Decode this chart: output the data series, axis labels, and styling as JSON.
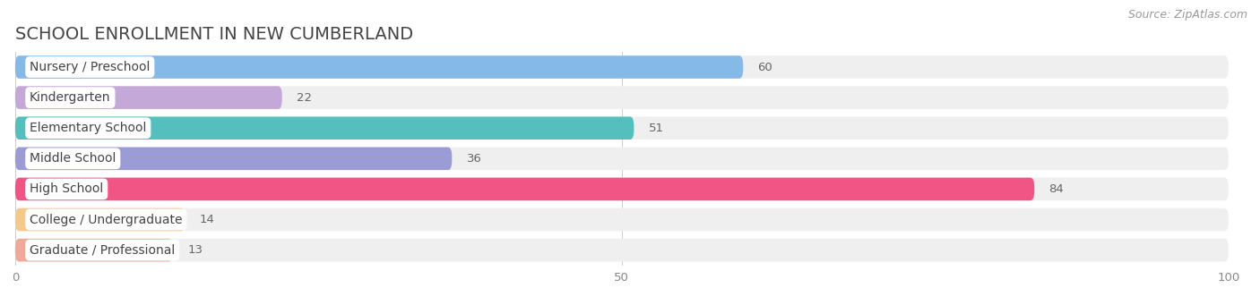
{
  "title": "SCHOOL ENROLLMENT IN NEW CUMBERLAND",
  "source": "Source: ZipAtlas.com",
  "categories": [
    "Nursery / Preschool",
    "Kindergarten",
    "Elementary School",
    "Middle School",
    "High School",
    "College / Undergraduate",
    "Graduate / Professional"
  ],
  "values": [
    60,
    22,
    51,
    36,
    84,
    14,
    13
  ],
  "bar_colors": [
    "#85BAE8",
    "#C4A8D8",
    "#55BFBE",
    "#9B9BD5",
    "#F05585",
    "#F5C98A",
    "#F0A898"
  ],
  "bar_bg_color": "#EFEFEF",
  "xlim": [
    0,
    100
  ],
  "xticks": [
    0,
    50,
    100
  ],
  "title_fontsize": 14,
  "label_fontsize": 10,
  "value_fontsize": 9.5,
  "source_fontsize": 9,
  "background_color": "#FFFFFF"
}
